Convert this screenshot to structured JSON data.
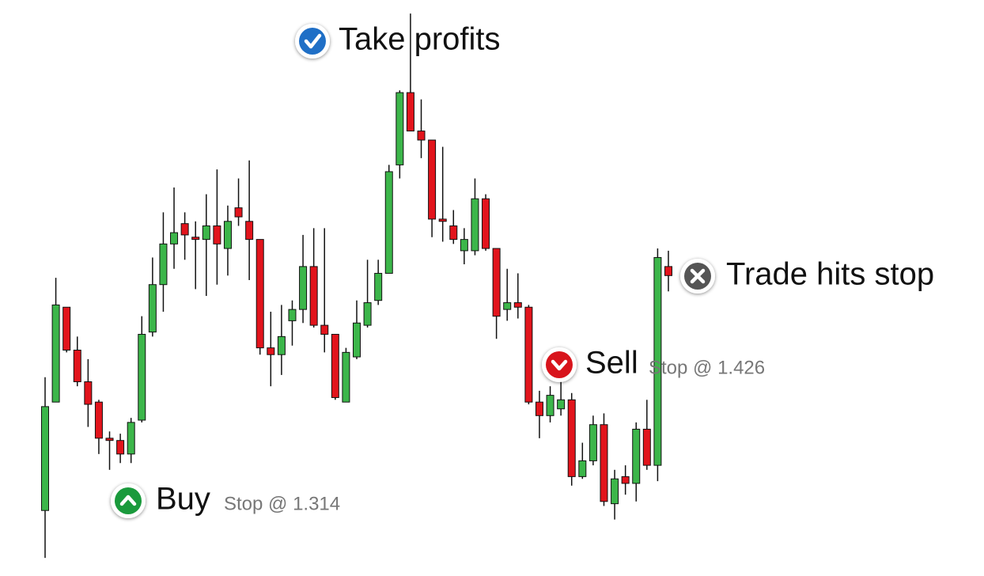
{
  "chart_data": {
    "type": "candlestick",
    "ylim": [
      1.295,
      1.55
    ],
    "up_color": "#3cb64a",
    "down_color": "#e2141c",
    "open": [
      1.324,
      1.372,
      1.414,
      1.395,
      1.381,
      1.372,
      1.356,
      1.355,
      1.349,
      1.364,
      1.403,
      1.424,
      1.442,
      1.451,
      1.445,
      1.444,
      1.45,
      1.44,
      1.458,
      1.452,
      1.444,
      1.396,
      1.393,
      1.408,
      1.413,
      1.432,
      1.406,
      1.402,
      1.372,
      1.392,
      1.406,
      1.417,
      1.429,
      1.477,
      1.509,
      1.492,
      1.488,
      1.453,
      1.45,
      1.439,
      1.439,
      1.462,
      1.44,
      1.413,
      1.416,
      1.414,
      1.372,
      1.366,
      1.369,
      1.373,
      1.339,
      1.346,
      1.362,
      1.327,
      1.339,
      1.336,
      1.36,
      1.344,
      1.432
    ],
    "high": [
      1.383,
      1.427,
      1.414,
      1.401,
      1.391,
      1.373,
      1.359,
      1.358,
      1.365,
      1.41,
      1.436,
      1.456,
      1.467,
      1.456,
      1.452,
      1.464,
      1.475,
      1.459,
      1.471,
      1.479,
      1.444,
      1.412,
      1.415,
      1.417,
      1.446,
      1.449,
      1.449,
      1.402,
      1.396,
      1.417,
      1.435,
      1.435,
      1.477,
      1.51,
      1.544,
      1.506,
      1.488,
      1.485,
      1.457,
      1.449,
      1.471,
      1.464,
      1.44,
      1.431,
      1.429,
      1.415,
      1.377,
      1.379,
      1.384,
      1.376,
      1.354,
      1.366,
      1.367,
      1.342,
      1.344,
      1.363,
      1.373,
      1.44,
      1.439
    ],
    "low": [
      1.303,
      1.372,
      1.394,
      1.379,
      1.361,
      1.349,
      1.342,
      1.345,
      1.345,
      1.363,
      1.401,
      1.412,
      1.431,
      1.435,
      1.422,
      1.419,
      1.424,
      1.428,
      1.45,
      1.426,
      1.393,
      1.379,
      1.384,
      1.397,
      1.407,
      1.405,
      1.394,
      1.373,
      1.372,
      1.391,
      1.405,
      1.415,
      1.429,
      1.471,
      1.492,
      1.48,
      1.445,
      1.443,
      1.442,
      1.433,
      1.437,
      1.439,
      1.4,
      1.408,
      1.409,
      1.371,
      1.356,
      1.363,
      1.366,
      1.335,
      1.338,
      1.344,
      1.326,
      1.32,
      1.331,
      1.328,
      1.342,
      1.337,
      1.421
    ],
    "close": [
      1.37,
      1.415,
      1.395,
      1.381,
      1.371,
      1.356,
      1.355,
      1.349,
      1.363,
      1.402,
      1.424,
      1.442,
      1.447,
      1.446,
      1.444,
      1.45,
      1.442,
      1.452,
      1.454,
      1.444,
      1.396,
      1.393,
      1.401,
      1.413,
      1.432,
      1.406,
      1.402,
      1.374,
      1.394,
      1.407,
      1.416,
      1.429,
      1.474,
      1.509,
      1.492,
      1.488,
      1.453,
      1.452,
      1.444,
      1.444,
      1.462,
      1.44,
      1.41,
      1.416,
      1.414,
      1.372,
      1.366,
      1.375,
      1.373,
      1.339,
      1.346,
      1.362,
      1.328,
      1.338,
      1.336,
      1.36,
      1.344,
      1.436,
      1.428
    ],
    "annotations": [
      {
        "text": "Take profits"
      },
      {
        "text": "Buy",
        "subtext": "Stop @ 1.314"
      },
      {
        "text": "Sell",
        "subtext": "Stop @ 1.426"
      },
      {
        "text": "Trade hits stop"
      }
    ]
  }
}
